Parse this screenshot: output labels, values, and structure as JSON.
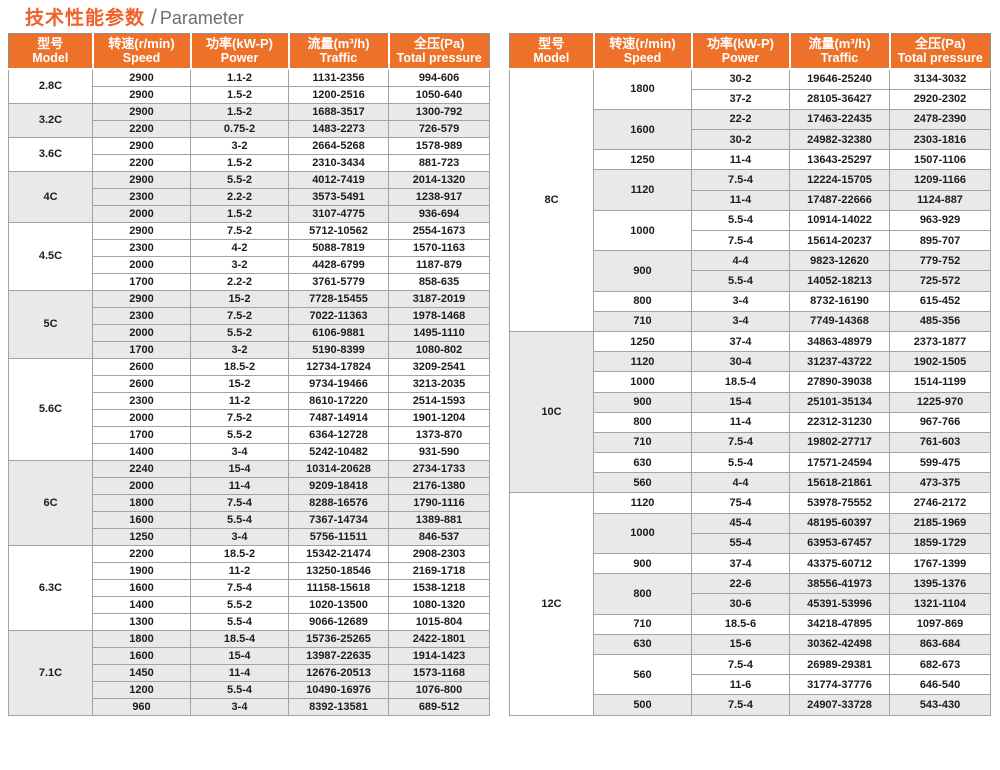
{
  "title": {
    "zh": "技术性能参数",
    "sep": "/",
    "en": "Parameter"
  },
  "colors": {
    "header_bg": "#ED7128",
    "title_accent": "#F0602A",
    "shaded_row": "#E9E9E9",
    "border": "#A3A3A3",
    "text": "#1C1C1C",
    "subtitle_gray": "#6E6E6E"
  },
  "headers": [
    {
      "zh": "型号",
      "en": "Model"
    },
    {
      "zh": "转速(r/min)",
      "en": "Speed"
    },
    {
      "zh": "功率(kW-P)",
      "en": "Power"
    },
    {
      "zh": "流量(m³/h)",
      "en": "Traffic"
    },
    {
      "zh": "全压(Pa)",
      "en": "Total pressure"
    }
  ],
  "tables": [
    {
      "name": "left",
      "groups": [
        {
          "model": "2.8C",
          "speeds": [
            {
              "speed": "2900",
              "entries": [
                [
                  "1.1-2",
                  "1131-2356",
                  "994-606"
                ]
              ]
            },
            {
              "speed": "2900",
              "entries": [
                [
                  "1.5-2",
                  "1200-2516",
                  "1050-640"
                ]
              ]
            }
          ]
        },
        {
          "model": "3.2C",
          "speeds": [
            {
              "speed": "2900",
              "entries": [
                [
                  "1.5-2",
                  "1688-3517",
                  "1300-792"
                ]
              ]
            },
            {
              "speed": "2200",
              "entries": [
                [
                  "0.75-2",
                  "1483-2273",
                  "726-579"
                ]
              ]
            }
          ]
        },
        {
          "model": "3.6C",
          "speeds": [
            {
              "speed": "2900",
              "entries": [
                [
                  "3-2",
                  "2664-5268",
                  "1578-989"
                ]
              ]
            },
            {
              "speed": "2200",
              "entries": [
                [
                  "1.5-2",
                  "2310-3434",
                  "881-723"
                ]
              ]
            }
          ]
        },
        {
          "model": "4C",
          "speeds": [
            {
              "speed": "2900",
              "entries": [
                [
                  "5.5-2",
                  "4012-7419",
                  "2014-1320"
                ]
              ]
            },
            {
              "speed": "2300",
              "entries": [
                [
                  "2.2-2",
                  "3573-5491",
                  "1238-917"
                ]
              ]
            },
            {
              "speed": "2000",
              "entries": [
                [
                  "1.5-2",
                  "3107-4775",
                  "936-694"
                ]
              ]
            }
          ]
        },
        {
          "model": "4.5C",
          "speeds": [
            {
              "speed": "2900",
              "entries": [
                [
                  "7.5-2",
                  "5712-10562",
                  "2554-1673"
                ]
              ]
            },
            {
              "speed": "2300",
              "entries": [
                [
                  "4-2",
                  "5088-7819",
                  "1570-1163"
                ]
              ]
            },
            {
              "speed": "2000",
              "entries": [
                [
                  "3-2",
                  "4428-6799",
                  "1187-879"
                ]
              ]
            },
            {
              "speed": "1700",
              "entries": [
                [
                  "2.2-2",
                  "3761-5779",
                  "858-635"
                ]
              ]
            }
          ]
        },
        {
          "model": "5C",
          "speeds": [
            {
              "speed": "2900",
              "entries": [
                [
                  "15-2",
                  "7728-15455",
                  "3187-2019"
                ]
              ]
            },
            {
              "speed": "2300",
              "entries": [
                [
                  "7.5-2",
                  "7022-11363",
                  "1978-1468"
                ]
              ]
            },
            {
              "speed": "2000",
              "entries": [
                [
                  "5.5-2",
                  "6106-9881",
                  "1495-1110"
                ]
              ]
            },
            {
              "speed": "1700",
              "entries": [
                [
                  "3-2",
                  "5190-8399",
                  "1080-802"
                ]
              ]
            }
          ]
        },
        {
          "model": "5.6C",
          "speeds": [
            {
              "speed": "2600",
              "entries": [
                [
                  "18.5-2",
                  "12734-17824",
                  "3209-2541"
                ]
              ]
            },
            {
              "speed": "2600",
              "entries": [
                [
                  "15-2",
                  "9734-19466",
                  "3213-2035"
                ]
              ]
            },
            {
              "speed": "2300",
              "entries": [
                [
                  "11-2",
                  "8610-17220",
                  "2514-1593"
                ]
              ]
            },
            {
              "speed": "2000",
              "entries": [
                [
                  "7.5-2",
                  "7487-14914",
                  "1901-1204"
                ]
              ]
            },
            {
              "speed": "1700",
              "entries": [
                [
                  "5.5-2",
                  "6364-12728",
                  "1373-870"
                ]
              ]
            },
            {
              "speed": "1400",
              "entries": [
                [
                  "3-4",
                  "5242-10482",
                  "931-590"
                ]
              ]
            }
          ]
        },
        {
          "model": "6C",
          "speeds": [
            {
              "speed": "2240",
              "entries": [
                [
                  "15-4",
                  "10314-20628",
                  "2734-1733"
                ]
              ]
            },
            {
              "speed": "2000",
              "entries": [
                [
                  "11-4",
                  "9209-18418",
                  "2176-1380"
                ]
              ]
            },
            {
              "speed": "1800",
              "entries": [
                [
                  "7.5-4",
                  "8288-16576",
                  "1790-1116"
                ]
              ]
            },
            {
              "speed": "1600",
              "entries": [
                [
                  "5.5-4",
                  "7367-14734",
                  "1389-881"
                ]
              ]
            },
            {
              "speed": "1250",
              "entries": [
                [
                  "3-4",
                  "5756-11511",
                  "846-537"
                ]
              ]
            }
          ]
        },
        {
          "model": "6.3C",
          "speeds": [
            {
              "speed": "2200",
              "entries": [
                [
                  "18.5-2",
                  "15342-21474",
                  "2908-2303"
                ]
              ]
            },
            {
              "speed": "1900",
              "entries": [
                [
                  "11-2",
                  "13250-18546",
                  "2169-1718"
                ]
              ]
            },
            {
              "speed": "1600",
              "entries": [
                [
                  "7.5-4",
                  "11158-15618",
                  "1538-1218"
                ]
              ]
            },
            {
              "speed": "1400",
              "entries": [
                [
                  "5.5-2",
                  "1020-13500",
                  "1080-1320"
                ]
              ]
            },
            {
              "speed": "1300",
              "entries": [
                [
                  "5.5-4",
                  "9066-12689",
                  "1015-804"
                ]
              ]
            }
          ]
        },
        {
          "model": "7.1C",
          "speeds": [
            {
              "speed": "1800",
              "entries": [
                [
                  "18.5-4",
                  "15736-25265",
                  "2422-1801"
                ]
              ]
            },
            {
              "speed": "1600",
              "entries": [
                [
                  "15-4",
                  "13987-22635",
                  "1914-1423"
                ]
              ]
            },
            {
              "speed": "1450",
              "entries": [
                [
                  "11-4",
                  "12676-20513",
                  "1573-1168"
                ]
              ]
            },
            {
              "speed": "1200",
              "entries": [
                [
                  "5.5-4",
                  "10490-16976",
                  "1076-800"
                ]
              ]
            },
            {
              "speed": "960",
              "entries": [
                [
                  "3-4",
                  "8392-13581",
                  "689-512"
                ]
              ]
            }
          ]
        }
      ]
    },
    {
      "name": "right",
      "groups": [
        {
          "model": "8C",
          "speeds": [
            {
              "speed": "1800",
              "entries": [
                [
                  "30-2",
                  "19646-25240",
                  "3134-3032"
                ],
                [
                  "37-2",
                  "28105-36427",
                  "2920-2302"
                ]
              ]
            },
            {
              "speed": "1600",
              "entries": [
                [
                  "22-2",
                  "17463-22435",
                  "2478-2390"
                ],
                [
                  "30-2",
                  "24982-32380",
                  "2303-1816"
                ]
              ]
            },
            {
              "speed": "1250",
              "entries": [
                [
                  "11-4",
                  "13643-25297",
                  "1507-1106"
                ]
              ]
            },
            {
              "speed": "1120",
              "entries": [
                [
                  "7.5-4",
                  "12224-15705",
                  "1209-1166"
                ],
                [
                  "11-4",
                  "17487-22666",
                  "1124-887"
                ]
              ]
            },
            {
              "speed": "1000",
              "entries": [
                [
                  "5.5-4",
                  "10914-14022",
                  "963-929"
                ],
                [
                  "7.5-4",
                  "15614-20237",
                  "895-707"
                ]
              ]
            },
            {
              "speed": "900",
              "entries": [
                [
                  "4-4",
                  "9823-12620",
                  "779-752"
                ],
                [
                  "5.5-4",
                  "14052-18213",
                  "725-572"
                ]
              ]
            },
            {
              "speed": "800",
              "entries": [
                [
                  "3-4",
                  "8732-16190",
                  "615-452"
                ]
              ]
            },
            {
              "speed": "710",
              "entries": [
                [
                  "3-4",
                  "7749-14368",
                  "485-356"
                ]
              ]
            }
          ]
        },
        {
          "model": "10C",
          "speeds": [
            {
              "speed": "1250",
              "entries": [
                [
                  "37-4",
                  "34863-48979",
                  "2373-1877"
                ]
              ]
            },
            {
              "speed": "1120",
              "entries": [
                [
                  "30-4",
                  "31237-43722",
                  "1902-1505"
                ]
              ]
            },
            {
              "speed": "1000",
              "entries": [
                [
                  "18.5-4",
                  "27890-39038",
                  "1514-1199"
                ]
              ]
            },
            {
              "speed": "900",
              "entries": [
                [
                  "15-4",
                  "25101-35134",
                  "1225-970"
                ]
              ]
            },
            {
              "speed": "800",
              "entries": [
                [
                  "11-4",
                  "22312-31230",
                  "967-766"
                ]
              ]
            },
            {
              "speed": "710",
              "entries": [
                [
                  "7.5-4",
                  "19802-27717",
                  "761-603"
                ]
              ]
            },
            {
              "speed": "630",
              "entries": [
                [
                  "5.5-4",
                  "17571-24594",
                  "599-475"
                ]
              ]
            },
            {
              "speed": "560",
              "entries": [
                [
                  "4-4",
                  "15618-21861",
                  "473-375"
                ]
              ]
            }
          ]
        },
        {
          "model": "12C",
          "speeds": [
            {
              "speed": "1120",
              "entries": [
                [
                  "75-4",
                  "53978-75552",
                  "2746-2172"
                ]
              ]
            },
            {
              "speed": "1000",
              "entries": [
                [
                  "45-4",
                  "48195-60397",
                  "2185-1969"
                ],
                [
                  "55-4",
                  "63953-67457",
                  "1859-1729"
                ]
              ]
            },
            {
              "speed": "900",
              "entries": [
                [
                  "37-4",
                  "43375-60712",
                  "1767-1399"
                ]
              ]
            },
            {
              "speed": "800",
              "entries": [
                [
                  "22-6",
                  "38556-41973",
                  "1395-1376"
                ],
                [
                  "30-6",
                  "45391-53996",
                  "1321-1104"
                ]
              ]
            },
            {
              "speed": "710",
              "entries": [
                [
                  "18.5-6",
                  "34218-47895",
                  "1097-869"
                ]
              ]
            },
            {
              "speed": "630",
              "entries": [
                [
                  "15-6",
                  "30362-42498",
                  "863-684"
                ]
              ]
            },
            {
              "speed": "560",
              "entries": [
                [
                  "7.5-4",
                  "26989-29381",
                  "682-673"
                ],
                [
                  "11-6",
                  "31774-37776",
                  "646-540"
                ]
              ]
            },
            {
              "speed": "500",
              "entries": [
                [
                  "7.5-4",
                  "24907-33728",
                  "543-430"
                ]
              ]
            }
          ]
        }
      ]
    }
  ]
}
